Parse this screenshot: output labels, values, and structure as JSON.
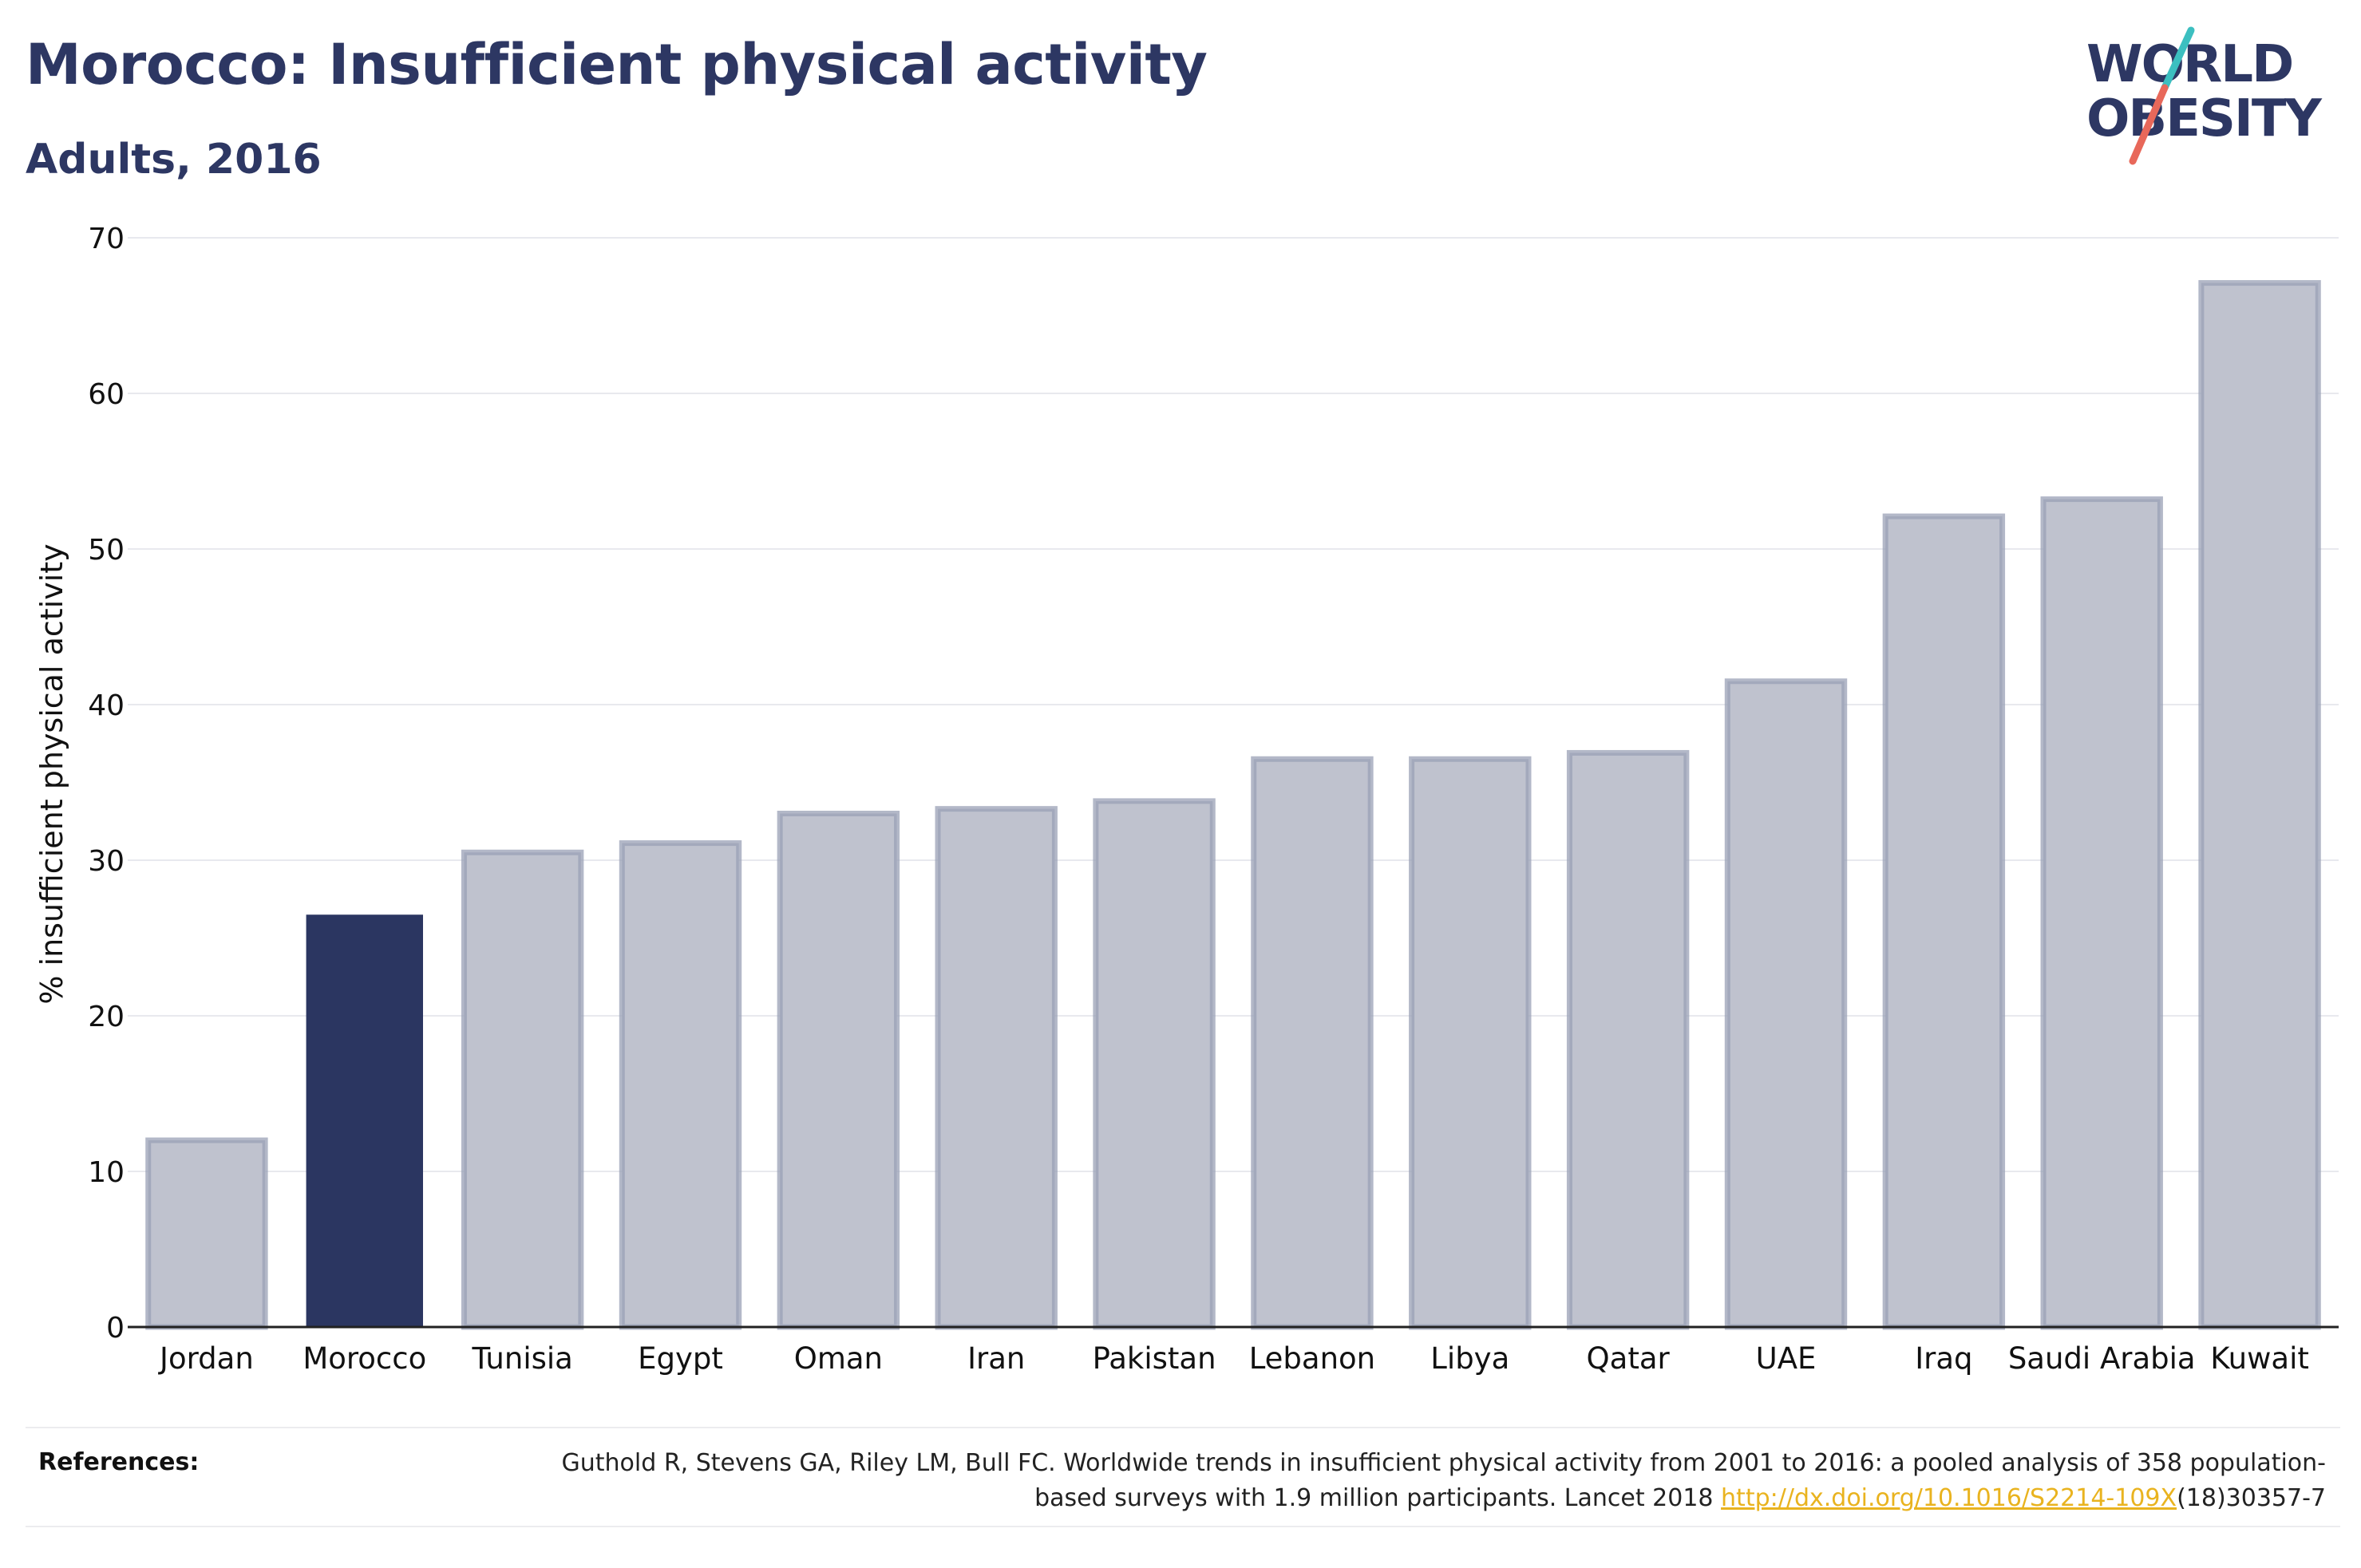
{
  "header": {
    "title": "Morocco: Insufficient physical activity",
    "subtitle": "Adults, 2016"
  },
  "logo": {
    "line1": "WORLD",
    "line2": "OBESITY",
    "slash_colors": [
      "#3cbfc0",
      "#e8685a"
    ],
    "text_color": "#2d3763"
  },
  "chart_data": {
    "type": "bar",
    "categories": [
      "Jordan",
      "Morocco",
      "Tunisia",
      "Egypt",
      "Oman",
      "Iran",
      "Pakistan",
      "Lebanon",
      "Libya",
      "Qatar",
      "UAE",
      "Iraq",
      "Saudi Arabia",
      "Kuwait"
    ],
    "values": [
      12.0,
      26.5,
      30.5,
      31.1,
      33.0,
      33.3,
      33.8,
      36.5,
      36.5,
      36.9,
      41.5,
      52.1,
      53.2,
      67.1
    ],
    "highlight": "Morocco",
    "highlight_color": "#2b3661",
    "bar_color": "#bfc2ce",
    "bar_border_color": "#9aa0b6",
    "title": "Morocco: Insufficient physical activity",
    "subtitle": "Adults, 2016",
    "xlabel": "",
    "ylabel": "% insufficient physical activity",
    "ylim": [
      0,
      70
    ],
    "yticks": [
      0,
      10,
      20,
      30,
      40,
      50,
      60,
      70
    ],
    "grid": true,
    "legend": "none"
  },
  "references": {
    "label": "References:",
    "text_before": "Guthold R, Stevens GA, Riley LM, Bull FC. Worldwide trends in insufficient physical activity from 2001 to 2016: a pooled analysis of 358 population-based surveys with 1.9 million participants. Lancet 2018 ",
    "link": "http://dx.doi.org/10.1016/S2214-109X",
    "text_after": "(18)30357-7"
  }
}
